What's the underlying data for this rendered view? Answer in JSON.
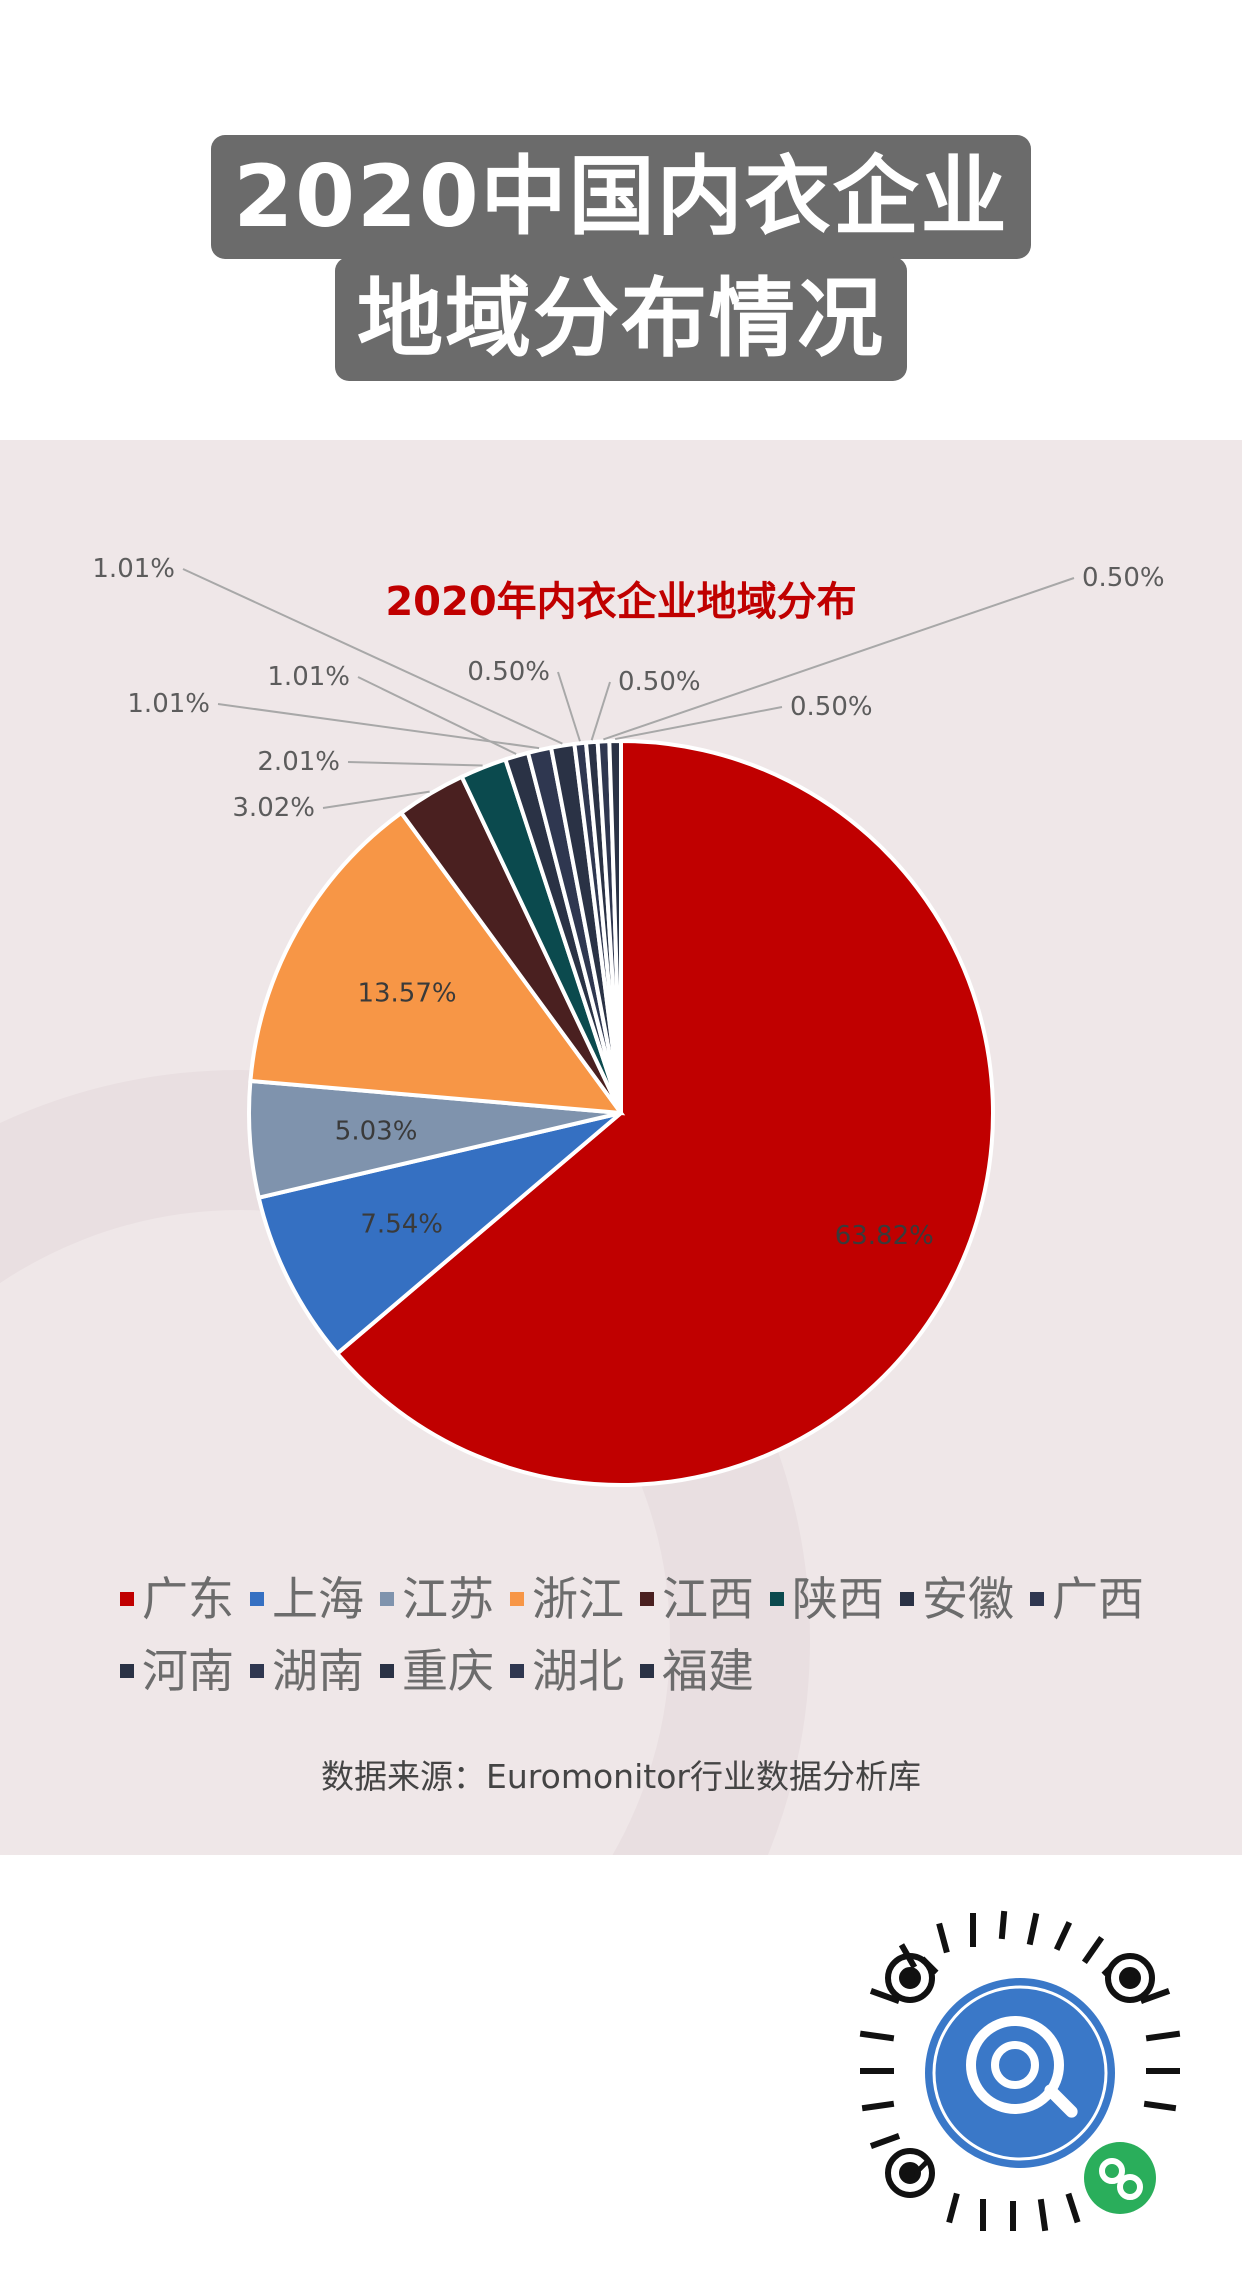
{
  "header": {
    "title_line1": "2020中国内衣企业",
    "title_line2": "地域分布情况"
  },
  "chart_data": {
    "type": "pie",
    "title": "2020年内衣企业地域分布",
    "start_angle_deg": 0,
    "direction": "clockwise",
    "slices": [
      {
        "label": "广东",
        "value": 63.82,
        "display": "63.82%",
        "color": "#c00000"
      },
      {
        "label": "上海",
        "value": 7.54,
        "display": "7.54%",
        "color": "#3570c2"
      },
      {
        "label": "江苏",
        "value": 5.03,
        "display": "5.03%",
        "color": "#7f93ad"
      },
      {
        "label": "浙江",
        "value": 13.57,
        "display": "13.57%",
        "color": "#f79646"
      },
      {
        "label": "江西",
        "value": 3.02,
        "display": "3.02%",
        "color": "#4a2020"
      },
      {
        "label": "陕西",
        "value": 2.01,
        "display": "2.01%",
        "color": "#0b4a4e"
      },
      {
        "label": "安徽",
        "value": 1.01,
        "display": "1.01%",
        "color": "#2a3245"
      },
      {
        "label": "广西",
        "value": 1.01,
        "display": "1.01%",
        "color": "#2f3750"
      },
      {
        "label": "河南",
        "value": 1.01,
        "display": "1.01%",
        "color": "#2a3245"
      },
      {
        "label": "湖南",
        "value": 0.5,
        "display": "0.50%",
        "color": "#2f3750"
      },
      {
        "label": "重庆",
        "value": 0.5,
        "display": "0.50%",
        "color": "#2a3245"
      },
      {
        "label": "湖北",
        "value": 0.5,
        "display": "0.50%",
        "color": "#2f3750"
      },
      {
        "label": "福建",
        "value": 0.5,
        "display": "0.50%",
        "color": "#2a3245"
      }
    ],
    "legend_position": "bottom",
    "source": "数据来源：Euromonitor行业数据分析库"
  }
}
